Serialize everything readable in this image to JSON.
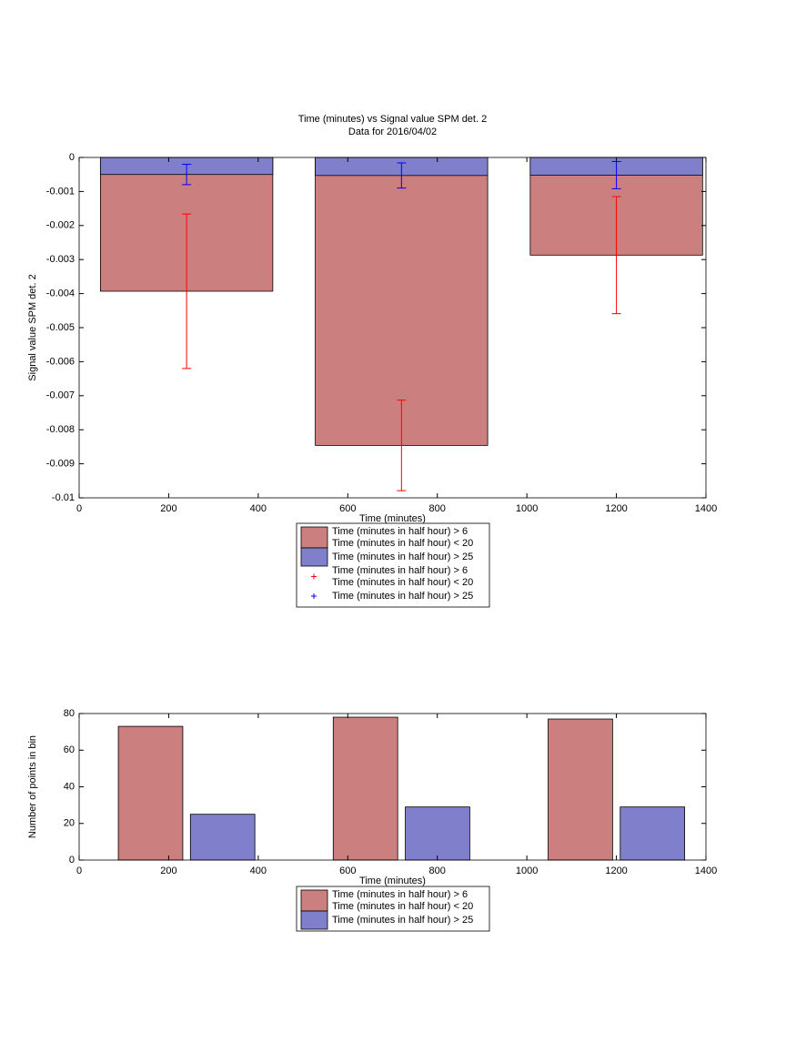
{
  "chart_data": [
    {
      "type": "bar",
      "barmode": "overlay",
      "title": "Time (minutes) vs Signal value SPM det. 2",
      "subtitle": "Data for 2016/04/02",
      "x_label": "Time (minutes)",
      "y_label": "Signal value SPM det. 2",
      "x": [
        240,
        720,
        1200
      ],
      "series": [
        {
          "name": "Time (minutes in half hour) > 6\nTime (minutes in half hour) < 20",
          "color": "#cc7f7f",
          "error_color": "#ff0000",
          "values": [
            -0.00393,
            -0.00846,
            -0.00287
          ],
          "errors": [
            0.00227,
            0.00133,
            0.00172
          ]
        },
        {
          "name": "Time (minutes in half hour) > 25",
          "color": "#7f7fcc",
          "error_color": "#0000ff",
          "values": [
            -0.0005,
            -0.00053,
            -0.00052
          ],
          "errors": [
            0.0003,
            0.00037,
            0.0004
          ]
        }
      ],
      "xlim": [
        0,
        1400
      ],
      "xticks": [
        0,
        200,
        400,
        600,
        800,
        1000,
        1200,
        1400
      ],
      "ylim": [
        -0.01,
        0
      ],
      "yticks": [
        0,
        -0.001,
        -0.002,
        -0.003,
        -0.004,
        -0.005,
        -0.006,
        -0.007,
        -0.008,
        -0.009,
        -0.01
      ]
    },
    {
      "type": "bar",
      "barmode": "group",
      "x_label": "Time (minutes)",
      "y_label": "Number of points in bin",
      "x": [
        240,
        720,
        1200
      ],
      "series": [
        {
          "name": "Time (minutes in half hour) > 6\nTime (minutes in half hour) < 20",
          "color": "#cc7f7f",
          "values": [
            73,
            78,
            77
          ]
        },
        {
          "name": "Time (minutes in half hour) > 25",
          "color": "#7f7fcc",
          "values": [
            25,
            29,
            29
          ]
        }
      ],
      "xlim": [
        0,
        1400
      ],
      "xticks": [
        0,
        200,
        400,
        600,
        800,
        1000,
        1200,
        1400
      ],
      "ylim": [
        0,
        80
      ],
      "yticks": [
        0,
        20,
        40,
        60,
        80
      ]
    }
  ]
}
